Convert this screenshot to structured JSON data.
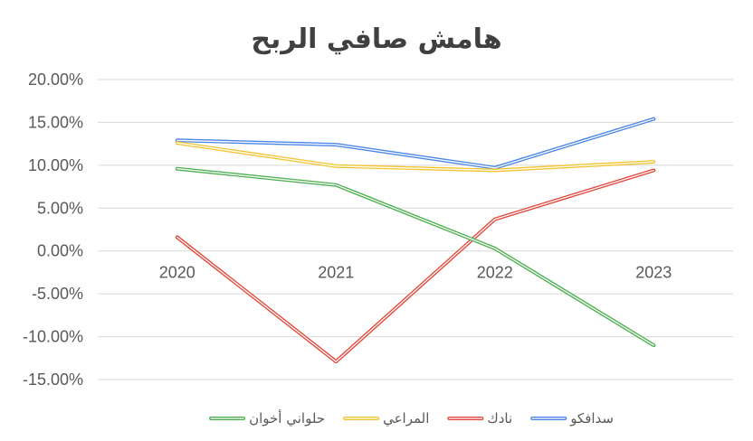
{
  "chart_data": {
    "type": "line",
    "title": "هامش صافي الربح",
    "categories": [
      "2020",
      "2021",
      "2022",
      "2023"
    ],
    "y_tick_labels": [
      "20.00%",
      "15.00%",
      "10.00%",
      "5.00%",
      "0.00%",
      "-5.00%",
      "-10.00%",
      "-15.00%"
    ],
    "ylim": [
      -15,
      20
    ],
    "y_unit": "%",
    "grid": true,
    "legend_position": "bottom",
    "series": [
      {
        "name": "سدافكو",
        "color": "#4a86e8",
        "values": [
          12.9,
          12.4,
          9.7,
          15.4
        ]
      },
      {
        "name": "نادك",
        "color": "#e0473a",
        "values": [
          1.6,
          -12.9,
          3.7,
          9.4
        ]
      },
      {
        "name": "المراعي",
        "color": "#f4c430",
        "values": [
          12.6,
          9.9,
          9.4,
          10.4
        ]
      },
      {
        "name": "حلواني أخوان",
        "color": "#4caf50",
        "values": [
          9.6,
          7.7,
          0.3,
          -11.0
        ]
      }
    ]
  }
}
